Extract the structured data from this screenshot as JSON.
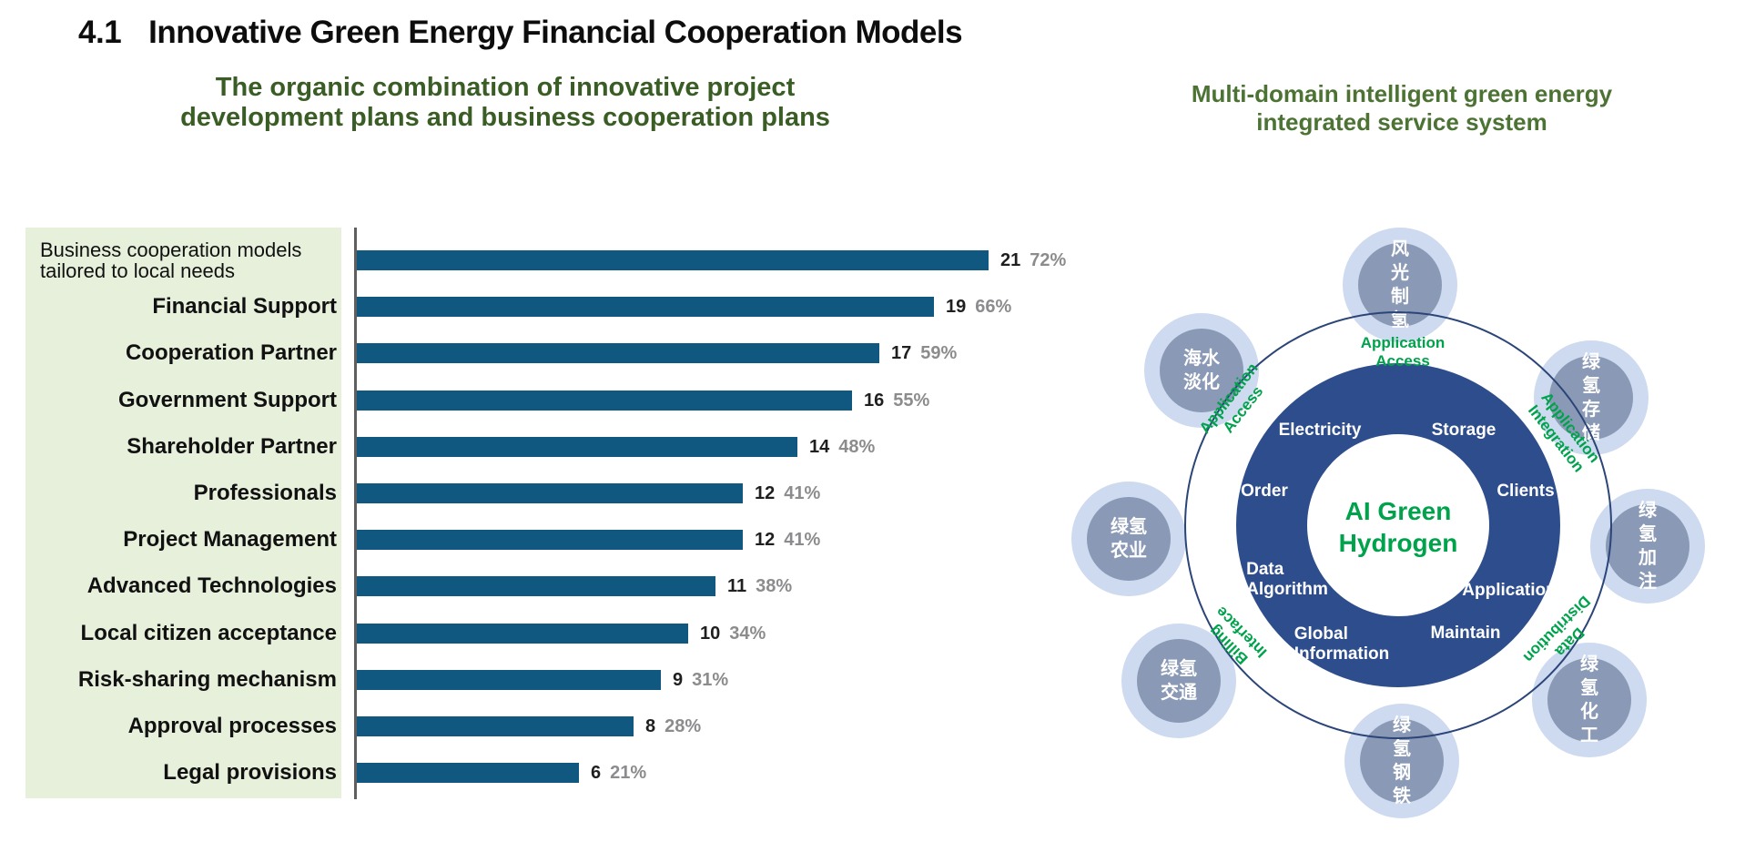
{
  "header": {
    "number": "4.1",
    "title": "Innovative Green Energy Financial Cooperation Models"
  },
  "left_section": {
    "title": "The organic combination of innovative project\ndevelopment plans and business cooperation plans",
    "title_color": "#3A5D25"
  },
  "chart_data": {
    "type": "bar",
    "orientation": "horizontal",
    "title": "The organic combination of innovative project development plans and business cooperation plans",
    "categories": [
      "Business cooperation models\ntailored to local needs",
      "Financial Support",
      "Cooperation Partner",
      "Government Support",
      "Shareholder Partner",
      "Professionals",
      "Project Management",
      "Advanced Technologies",
      "Local citizen acceptance",
      "Risk-sharing mechanism",
      "Approval processes",
      "Legal provisions"
    ],
    "series": [
      {
        "name": "count",
        "values": [
          21,
          19,
          17,
          16,
          14,
          12,
          12,
          11,
          10,
          9,
          8,
          6
        ]
      },
      {
        "name": "percent",
        "values": [
          "72%",
          "66%",
          "59%",
          "55%",
          "48%",
          "41%",
          "41%",
          "38%",
          "34%",
          "31%",
          "28%",
          "21%"
        ]
      }
    ],
    "xlim": [
      0,
      23
    ],
    "grid": false,
    "legend": false,
    "bar_color": "#115880",
    "count_color": "#1F1F1F",
    "percent_color": "#8C8C8E",
    "category_panel_color": "#E6F0DB"
  },
  "right_section": {
    "title": "Multi-domain intelligent green energy\nintegrated service system",
    "title_color": "#4C7334",
    "diagram": {
      "center_label": "AI Green\nHydrogen",
      "center_color": "#00A24C",
      "ring_color": "#2E4D8C",
      "ring_labels": [
        "Electricity",
        "Storage",
        "Order",
        "Clients",
        "Data\nAlgorithm",
        "Application",
        "Global\nInformation",
        "Maintain"
      ],
      "connector_labels": [
        "Application\nAccess",
        "Application\nAccess",
        "Application\nIntegration",
        "Billing\nInterface",
        "Data\nDistribution"
      ],
      "satellites": [
        "风光\n制氢",
        "海水\n淡化",
        "绿氢\n存储",
        "绿氢\n农业",
        "绿氢\n加注",
        "绿氢\n交通",
        "绿氢\n钢铁",
        "绿氢\n化工"
      ]
    }
  }
}
